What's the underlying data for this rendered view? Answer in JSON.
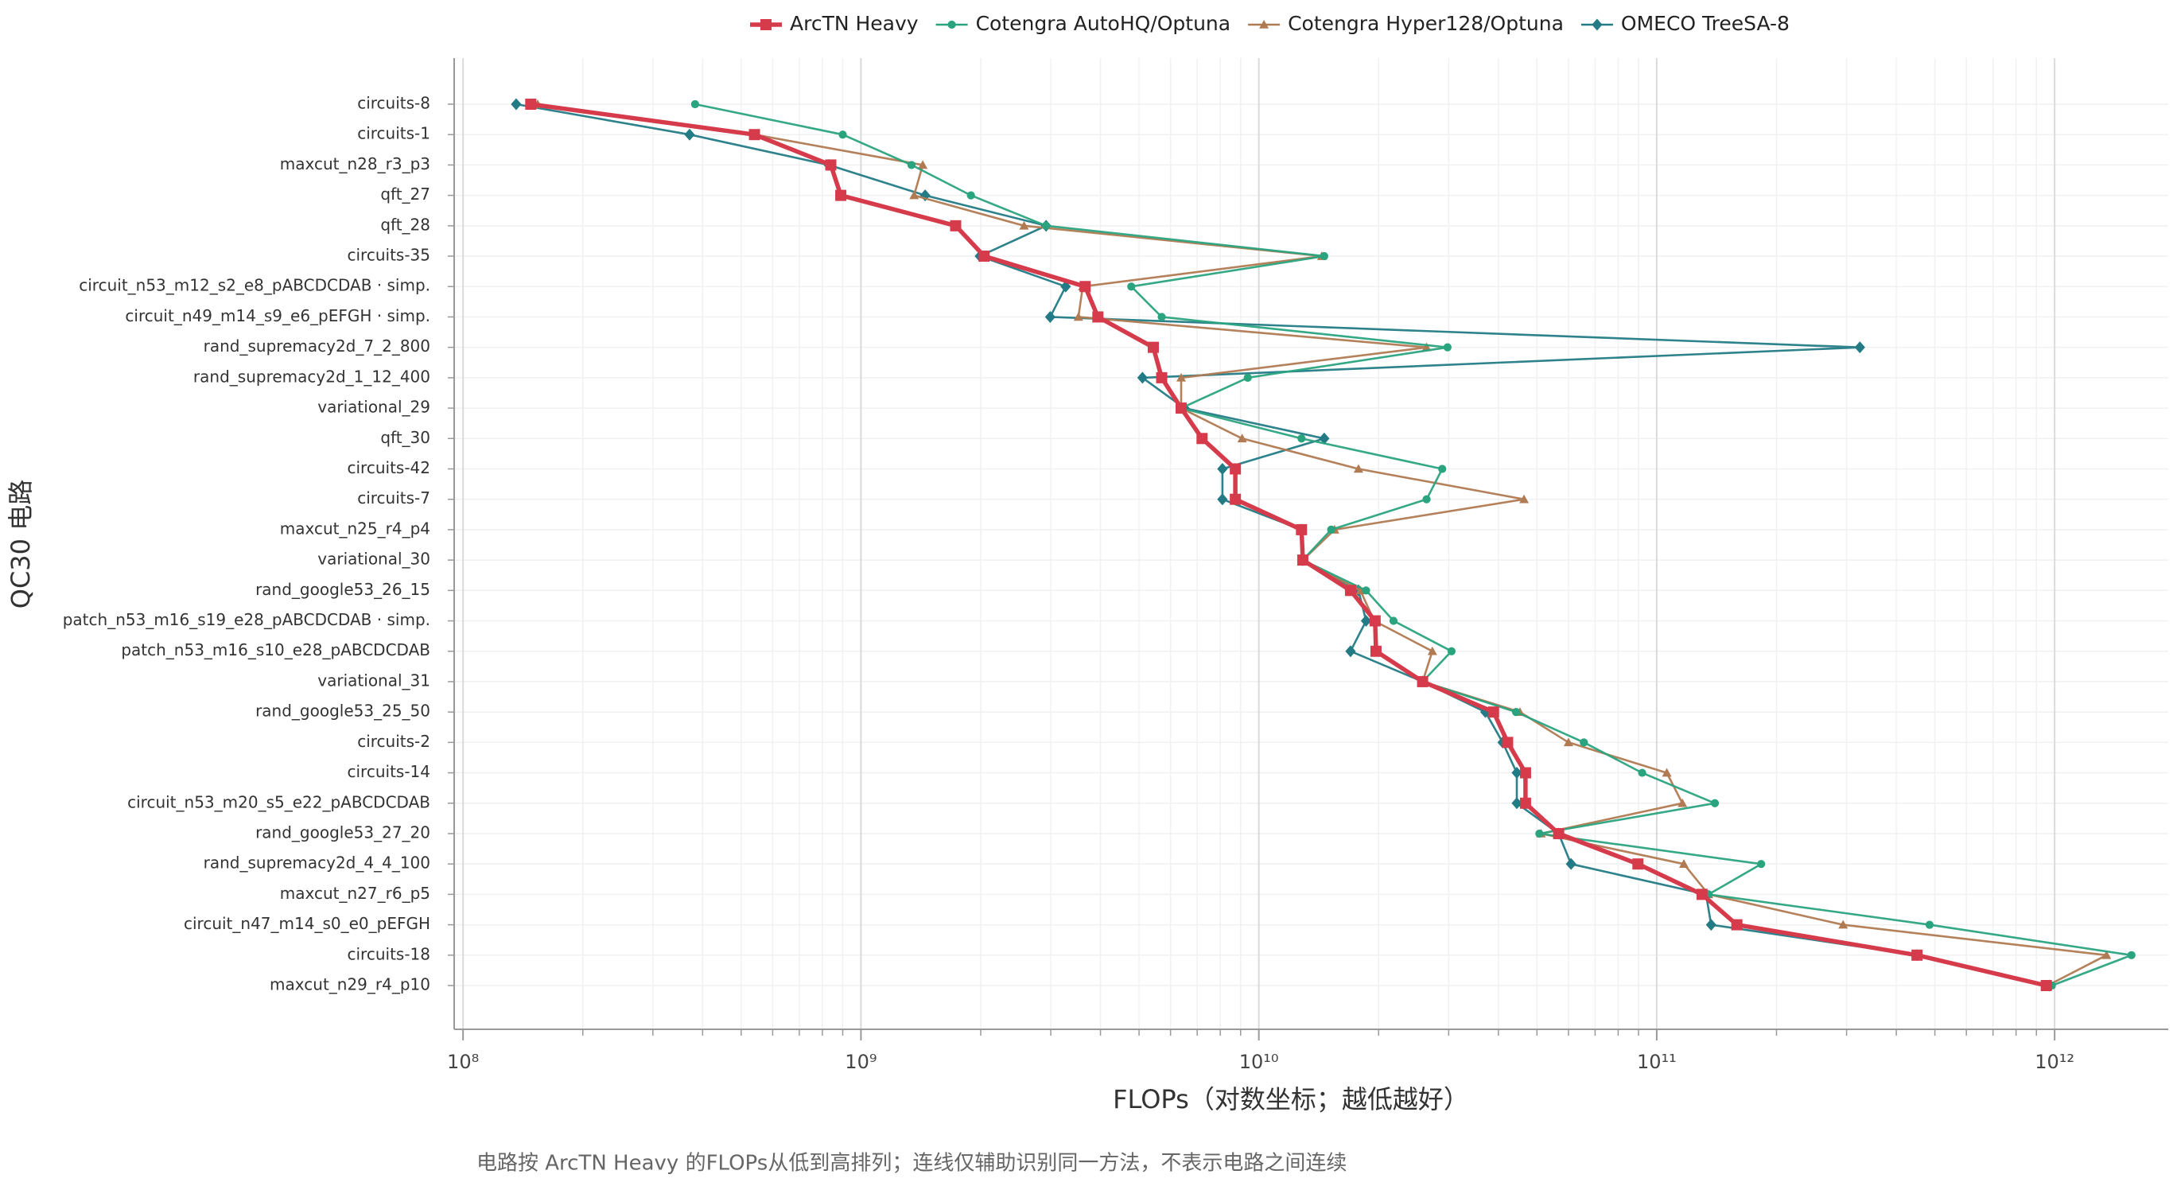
{
  "chart_data": {
    "type": "dot-line",
    "orientation": "horizontal",
    "x_label": "FLOPs（对数坐标；越低越好）",
    "y_label": "QC30 电路",
    "footnote": "电路按 ArcTN Heavy 的FLOPs从低到高排列；连线仅辅助识别同一方法，不表示电路之间连续",
    "xscale": "log",
    "grid": true,
    "minor_grid": true,
    "legend": "top",
    "xlim": [
      95000000.0,
      1930000000000.0
    ],
    "xticks": [
      {
        "value": 100000000,
        "label": "10⁸"
      },
      {
        "value": 1000000000,
        "label": "10⁹"
      },
      {
        "value": 10000000000,
        "label": "10¹⁰"
      },
      {
        "value": 100000000000,
        "label": "10¹¹"
      },
      {
        "value": 1000000000000,
        "label": "10¹²"
      }
    ],
    "categories": [
      "circuits-8",
      "circuits-1",
      "maxcut_n28_r3_p3",
      "qft_27",
      "qft_28",
      "circuits-35",
      "circuit_n53_m12_s2_e8_pABCDCDAB · simp.",
      "circuit_n49_m14_s9_e6_pEFGH · simp.",
      "rand_supremacy2d_7_2_800",
      "rand_supremacy2d_1_12_400",
      "variational_29",
      "qft_30",
      "circuits-42",
      "circuits-7",
      "maxcut_n25_r4_p4",
      "variational_30",
      "rand_google53_26_15",
      "patch_n53_m16_s19_e28_pABCDCDAB · simp.",
      "patch_n53_m16_s10_e28_pABCDCDAB",
      "variational_31",
      "rand_google53_25_50",
      "circuits-2",
      "circuits-14",
      "circuit_n53_m20_s5_e22_pABCDCDAB",
      "rand_google53_27_20",
      "rand_supremacy2d_4_4_100",
      "maxcut_n27_r6_p5",
      "circuit_n47_m14_s0_e0_pEFGH",
      "circuits-18",
      "maxcut_n29_r4_p10"
    ],
    "series": [
      {
        "name": "ArcTN Heavy",
        "color": "#d63b4b",
        "marker": "square",
        "values": [
          148000000.0,
          540000000.0,
          840000000.0,
          890000000.0,
          1730000000.0,
          2040000000.0,
          3660000000.0,
          3940000000.0,
          5430000000.0,
          5700000000.0,
          6380000000.0,
          7200000000.0,
          8730000000.0,
          8730000000.0,
          12800000000.0,
          12900000000.0,
          17000000000.0,
          19600000000.0,
          19700000000.0,
          25800000000.0,
          38900000000.0,
          42200000000.0,
          46800000000.0,
          46800000000.0,
          56700000000.0,
          89700000000.0,
          130000000000.0,
          159000000000.0,
          451000000000.0,
          953000000000.0
        ]
      },
      {
        "name": "Cotengra AutoHQ/Optuna",
        "color": "#2aa37f",
        "marker": "circle",
        "values": [
          383000000.0,
          900000000.0,
          1340000000.0,
          1890000000.0,
          2920000000.0,
          14600000000.0,
          4780000000.0,
          5700000000.0,
          29800000000.0,
          9380000000.0,
          6380000000.0,
          12800000000.0,
          28900000000.0,
          26400000000.0,
          15200000000.0,
          12900000000.0,
          18600000000.0,
          21800000000.0,
          30500000000.0,
          25800000000.0,
          44300000000.0,
          65600000000.0,
          91900000000.0,
          140000000000.0,
          50700000000.0,
          183000000000.0,
          135000000000.0,
          485000000000.0,
          1560000000000.0,
          984000000000.0
        ]
      },
      {
        "name": "Cotengra Hyper128/Optuna",
        "color": "#b07a52",
        "marker": "triangle",
        "values": [
          154000000.0,
          540000000.0,
          1430000000.0,
          1360000000.0,
          2570000000.0,
          14400000000.0,
          3610000000.0,
          3520000000.0,
          26400000000.0,
          6380000000.0,
          6380000000.0,
          9080000000.0,
          17800000000.0,
          46400000000.0,
          15500000000.0,
          12900000000.0,
          18000000000.0,
          19500000000.0,
          27300000000.0,
          25800000000.0,
          45300000000.0,
          60000000000.0,
          106000000000.0,
          116000000000.0,
          51200000000.0,
          117000000000.0,
          135000000000.0,
          294000000000.0,
          1350000000000.0,
          960000000000.0
        ]
      },
      {
        "name": "OMECO TreeSA-8",
        "color": "#237b86",
        "marker": "diamond",
        "values": [
          136000000.0,
          371000000.0,
          830000000.0,
          1450000000.0,
          2920000000.0,
          1990000000.0,
          3270000000.0,
          2990000000.0,
          324000000000.0,
          5100000000.0,
          6500000000.0,
          14600000000.0,
          8100000000.0,
          8100000000.0,
          12800000000.0,
          12900000000.0,
          17800000000.0,
          18600000000.0,
          17000000000.0,
          25800000000.0,
          37100000000.0,
          41000000000.0,
          44500000000.0,
          44500000000.0,
          56700000000.0,
          60900000000.0,
          133000000000.0,
          137000000000.0,
          451000000000.0,
          970000000000.0
        ]
      }
    ]
  }
}
